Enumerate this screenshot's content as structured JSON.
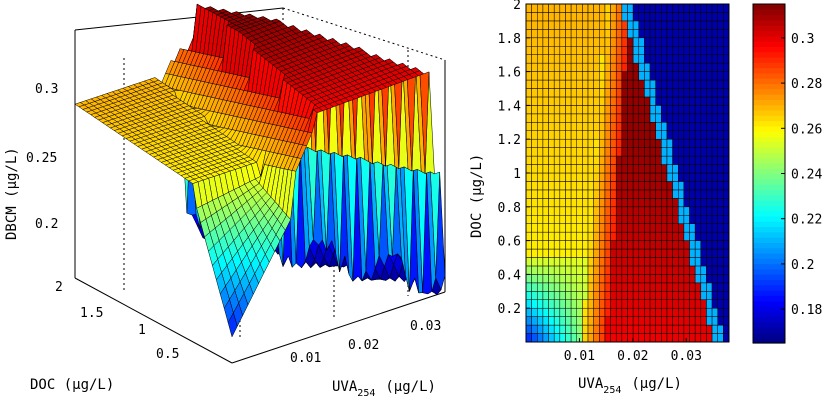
{
  "chart_data": [
    {
      "type": "surface",
      "xlabel": "UVA",
      "xlabel_sub": "254",
      "xlabel_units": "(μg/L)",
      "ylabel": "DOC (μg/L)",
      "zlabel": "DBCM (μg/L)",
      "x_ticks": [
        "0.01",
        "0.02",
        "0.03"
      ],
      "y_ticks": [
        "0.5",
        "1",
        "1.5",
        "2"
      ],
      "z_ticks": [
        "0.2",
        "0.25",
        "0.3"
      ],
      "xlim": [
        0,
        0.038
      ],
      "ylim": [
        0,
        2
      ],
      "zlim": [
        0.17,
        0.32
      ],
      "grid": true,
      "colormap": "jet"
    },
    {
      "type": "heatmap",
      "xlabel": "UVA",
      "xlabel_sub": "254",
      "xlabel_units": "(μg/L)",
      "ylabel": "DOC (μg/L)",
      "x_ticks": [
        "0.01",
        "0.02",
        "0.03"
      ],
      "y_ticks": [
        "0.2",
        "0.4",
        "0.6",
        "0.8",
        "1",
        "1.2",
        "1.4",
        "1.6",
        "1.8",
        "2"
      ],
      "xlim": [
        0,
        0.038
      ],
      "ylim": [
        0,
        2
      ],
      "colorbar_ticks": [
        "0.18",
        "0.2",
        "0.22",
        "0.24",
        "0.26",
        "0.28",
        "0.3"
      ],
      "clim": [
        0.165,
        0.315
      ],
      "colormap": "jet",
      "regions": [
        {
          "x": [
            0,
            0.012
          ],
          "y": [
            0,
            2
          ],
          "value": 0.255
        },
        {
          "x": [
            0,
            0.01
          ],
          "y": [
            0,
            0.4
          ],
          "value": 0.19
        },
        {
          "x": [
            0.016,
            0.038
          ],
          "y": [
            0,
            1.0
          ],
          "value": 0.295
        },
        {
          "x": [
            0.02,
            0.03
          ],
          "y": [
            0.8,
            1.8
          ],
          "value": 0.31
        },
        {
          "x": [
            0.03,
            0.038
          ],
          "y": [
            1.05,
            2
          ],
          "value": 0.175
        }
      ]
    }
  ]
}
